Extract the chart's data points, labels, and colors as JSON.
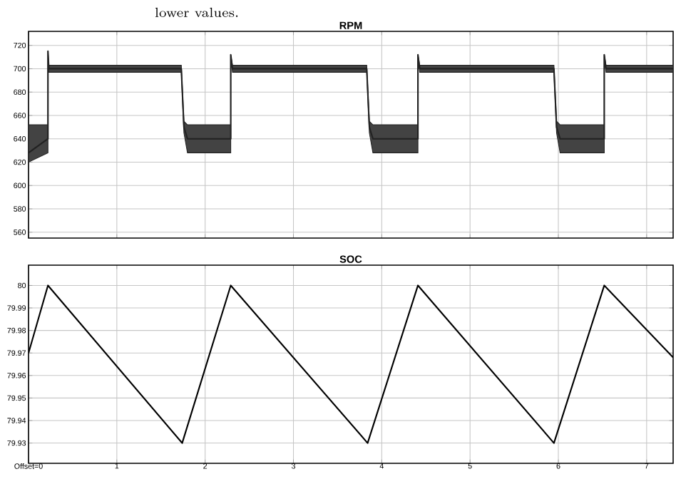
{
  "chart_data": [
    {
      "type": "line",
      "title": "RPM",
      "annotations": [
        "lower values."
      ],
      "xlim": [
        0,
        7.3
      ],
      "xticks": [
        0,
        1,
        2,
        3,
        4,
        5,
        6,
        7
      ],
      "ylim": [
        555,
        732
      ],
      "yticks": [
        560,
        580,
        600,
        620,
        640,
        660,
        680,
        700,
        720
      ],
      "grid": true,
      "tick_labels": "y",
      "series": [
        {
          "color": "#222222",
          "x": [
            0,
            0.22,
            0.22,
            0.23,
            1.73,
            1.76,
            1.8,
            2.29,
            2.29,
            2.31,
            3.83,
            3.86,
            3.9,
            4.41,
            4.41,
            4.43,
            5.95,
            5.98,
            6.02,
            6.52,
            6.52,
            6.54,
            7.3
          ],
          "values": [
            628,
            640,
            715,
            700,
            700,
            650,
            640,
            640,
            712,
            700,
            700,
            650,
            640,
            640,
            712,
            700,
            700,
            650,
            640,
            640,
            712,
            700,
            700
          ],
          "lower": [
            620,
            628,
            712,
            697,
            697,
            645,
            628,
            628,
            710,
            697,
            697,
            645,
            628,
            628,
            710,
            697,
            697,
            645,
            628,
            628,
            710,
            697,
            697
          ],
          "upper": [
            652,
            652,
            715,
            703,
            703,
            655,
            652,
            652,
            712,
            703,
            703,
            655,
            652,
            652,
            712,
            703,
            703,
            655,
            652,
            652,
            712,
            703,
            703
          ]
        }
      ]
    },
    {
      "type": "line",
      "title": "SOC",
      "xlim": [
        0,
        7.3
      ],
      "xticks": [
        {
          "value": 0,
          "label": "Offset=0"
        },
        1,
        2,
        3,
        4,
        5,
        6,
        7
      ],
      "ylim": [
        79.921,
        80.009
      ],
      "yticks": [
        79.93,
        79.94,
        79.95,
        79.96,
        79.97,
        79.98,
        79.99,
        80
      ],
      "grid": true,
      "series": [
        {
          "color": "#000000",
          "x": [
            0,
            0.22,
            1.74,
            2.29,
            3.84,
            4.41,
            5.95,
            6.52,
            7.3
          ],
          "values": [
            79.97,
            80.0,
            79.93,
            80.0,
            79.93,
            80.0,
            79.93,
            80.0,
            79.968
          ]
        }
      ]
    }
  ]
}
